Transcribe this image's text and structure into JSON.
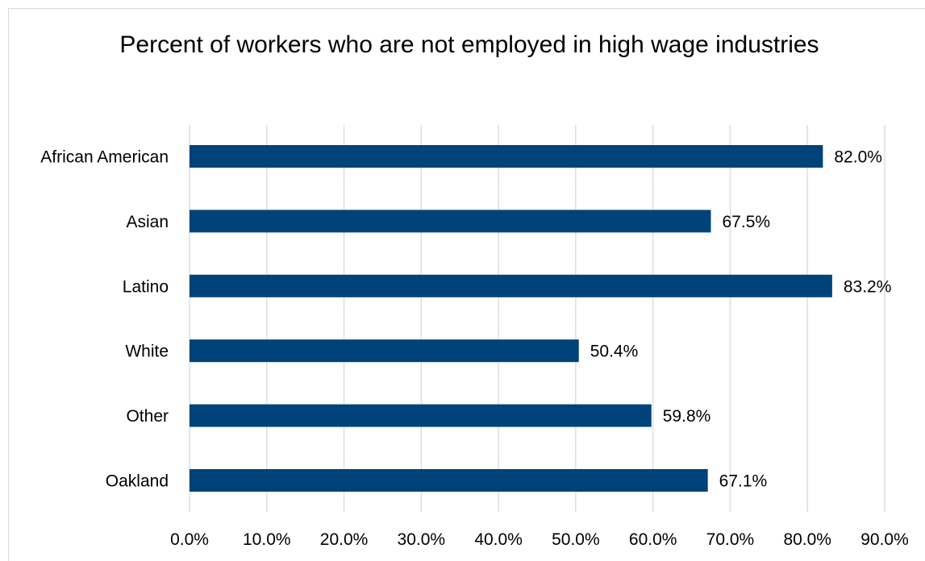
{
  "chart_data": {
    "type": "bar",
    "orientation": "horizontal",
    "title": "Percent of workers who are not employed in high wage industries",
    "categories": [
      "African American",
      "Asian",
      "Latino",
      "White",
      "Other",
      "Oakland"
    ],
    "values": [
      82.0,
      67.5,
      83.2,
      50.4,
      59.8,
      67.1
    ],
    "data_labels": [
      "82.0%",
      "67.5%",
      "83.2%",
      "50.4%",
      "59.8%",
      "67.1%"
    ],
    "xlim": [
      0,
      90
    ],
    "x_ticks": [
      0,
      10,
      20,
      30,
      40,
      50,
      60,
      70,
      80,
      90
    ],
    "x_tick_labels": [
      "0.0%",
      "10.0%",
      "20.0%",
      "30.0%",
      "40.0%",
      "50.0%",
      "60.0%",
      "70.0%",
      "80.0%",
      "90.0%"
    ],
    "xlabel": "",
    "ylabel": "",
    "grid": true,
    "legend": "none",
    "bar_color": "#00427a",
    "grid_color": "#d9d9d9"
  }
}
